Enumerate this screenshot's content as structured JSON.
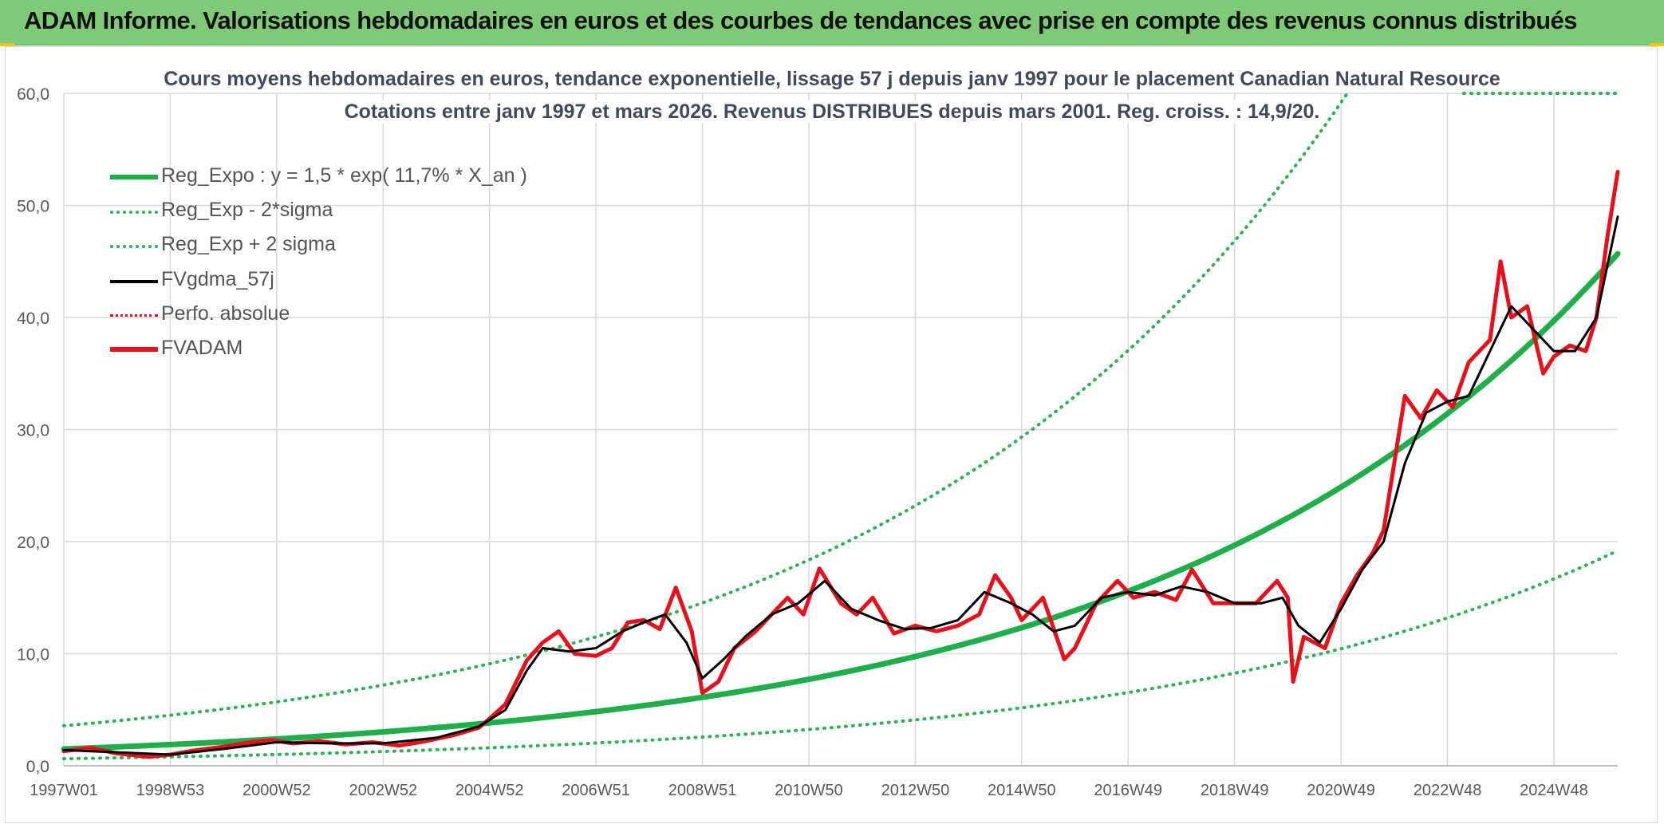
{
  "banner": {
    "title": "ADAM Informe. Valorisations hebdomadaires en euros et des courbes de tendances avec prise en compte des revenus connus distribués"
  },
  "colors": {
    "banner_bg": "#7fca76",
    "trend": "#1eae4a",
    "sigma": "#2ab351",
    "smooth": "#000000",
    "price": "#e8101a",
    "grid": "#d9d9d9",
    "tick_text": "#595959"
  },
  "chart_data": {
    "type": "line",
    "title": "Cours moyens hebdomadaires en euros, tendance exponentielle, lissage 57 j depuis janv 1997 pour le placement Canadian Natural Resource",
    "subtitle": "Cotations entre janv 1997 et mars 2026. Revenus DISTRIBUES depuis mars 2001. Reg. croiss. : 14,9/20.",
    "xlabel": "",
    "ylabel": "",
    "ylim": [
      0,
      60
    ],
    "y_ticks": [
      "0,0",
      "10,0",
      "20,0",
      "30,0",
      "40,0",
      "50,0",
      "60,0"
    ],
    "x_ticks": [
      "1997W01",
      "1998W53",
      "2000W52",
      "2002W52",
      "2004W52",
      "2006W51",
      "2008W51",
      "2010W50",
      "2012W50",
      "2014W50",
      "2016W49",
      "2018W49",
      "2020W49",
      "2022W48",
      "2024W48"
    ],
    "x_tick_years": [
      1997.0,
      1999.0,
      2001.0,
      2003.0,
      2005.0,
      2007.0,
      2009.0,
      2011.0,
      2013.0,
      2015.0,
      2017.0,
      2019.0,
      2021.0,
      2023.0,
      2025.0
    ],
    "xlim_years": [
      1997.0,
      2026.2
    ],
    "grid": true,
    "legend_position": "top-left",
    "regression": {
      "a": 1.5,
      "rate_pct": 11.7,
      "lower_factor": 0.42,
      "upper_factor": 2.38
    },
    "legend": [
      {
        "label": "Reg_Expo : y = 1,5 * exp( 11,7% *  X_an )",
        "style": "solid-thick",
        "color": "#1eae4a"
      },
      {
        "label": "Reg_Exp - 2*sigma",
        "style": "dotted",
        "color": "#2ab351"
      },
      {
        "label": "Reg_Exp + 2 sigma",
        "style": "dotted",
        "color": "#2ab351"
      },
      {
        "label": "FVgdma_57j",
        "style": "solid",
        "color": "#000000"
      },
      {
        "label": "Perfo. absolue",
        "style": "dotted",
        "color": "#e8101a"
      },
      {
        "label": "FVADAM",
        "style": "solid-thick",
        "color": "#e8101a"
      }
    ],
    "series": [
      {
        "name": "FVADAM",
        "x": [
          1997.0,
          1997.5,
          1998.0,
          1998.6,
          1999.0,
          1999.5,
          2000.0,
          2000.5,
          2000.9,
          2001.3,
          2001.8,
          2002.3,
          2002.8,
          2003.3,
          2003.8,
          2004.3,
          2004.8,
          2005.0,
          2005.3,
          2005.7,
          2006.0,
          2006.3,
          2006.6,
          2007.0,
          2007.3,
          2007.6,
          2007.9,
          2008.2,
          2008.5,
          2008.8,
          2009.0,
          2009.3,
          2009.6,
          2010.0,
          2010.3,
          2010.6,
          2010.9,
          2011.2,
          2011.6,
          2011.9,
          2012.2,
          2012.6,
          2013.0,
          2013.4,
          2013.8,
          2014.2,
          2014.5,
          2014.8,
          2015.0,
          2015.4,
          2015.8,
          2016.0,
          2016.4,
          2016.8,
          2017.1,
          2017.5,
          2017.9,
          2018.2,
          2018.6,
          2019.0,
          2019.4,
          2019.8,
          2020.0,
          2020.1,
          2020.3,
          2020.7,
          2021.0,
          2021.3,
          2021.6,
          2021.8,
          2022.0,
          2022.2,
          2022.5,
          2022.8,
          2023.1,
          2023.4,
          2023.8,
          2024.0,
          2024.2,
          2024.5,
          2024.8,
          2025.0,
          2025.3,
          2025.6,
          2025.8,
          2026.0,
          2026.2
        ],
        "values": [
          1.3,
          1.6,
          1.1,
          0.8,
          1.0,
          1.4,
          1.7,
          2.1,
          2.3,
          2.0,
          2.2,
          1.9,
          2.1,
          1.8,
          2.2,
          2.7,
          3.4,
          4.2,
          5.5,
          9.4,
          11.0,
          12.0,
          10.0,
          9.8,
          10.5,
          12.8,
          13.0,
          12.2,
          15.9,
          12.0,
          6.5,
          7.5,
          10.5,
          12.0,
          13.5,
          15.0,
          13.5,
          17.6,
          14.5,
          13.5,
          15.0,
          11.8,
          12.5,
          12.0,
          12.5,
          13.5,
          17.0,
          15.0,
          13.0,
          15.0,
          9.5,
          10.5,
          14.5,
          16.5,
          15.0,
          15.5,
          14.8,
          17.5,
          14.5,
          14.5,
          14.5,
          16.5,
          15.0,
          7.5,
          11.5,
          10.5,
          14.5,
          17.0,
          19.0,
          21.0,
          27.0,
          33.0,
          31.0,
          33.5,
          32.0,
          36.0,
          38.0,
          45.0,
          40.0,
          41.0,
          35.0,
          36.5,
          37.5,
          37.0,
          40.0,
          47.0,
          53.0
        ]
      },
      {
        "name": "FVgdma_57j",
        "x": [
          1997.0,
          1998.0,
          1999.0,
          2000.0,
          2001.0,
          2002.0,
          2003.0,
          2004.0,
          2004.8,
          2005.3,
          2005.7,
          2006.0,
          2006.5,
          2007.0,
          2007.5,
          2007.9,
          2008.3,
          2008.7,
          2009.0,
          2009.4,
          2009.8,
          2010.3,
          2010.8,
          2011.3,
          2011.8,
          2012.3,
          2012.8,
          2013.3,
          2013.8,
          2014.3,
          2014.8,
          2015.2,
          2015.6,
          2016.0,
          2016.5,
          2017.0,
          2017.5,
          2018.0,
          2018.5,
          2019.0,
          2019.5,
          2019.9,
          2020.2,
          2020.6,
          2021.0,
          2021.4,
          2021.8,
          2022.2,
          2022.6,
          2023.0,
          2023.4,
          2023.8,
          2024.2,
          2024.6,
          2025.0,
          2025.4,
          2025.8,
          2026.2
        ],
        "values": [
          1.4,
          1.2,
          1.0,
          1.5,
          2.1,
          2.0,
          2.0,
          2.5,
          3.5,
          5.0,
          8.5,
          10.5,
          10.2,
          10.5,
          12.0,
          12.8,
          13.5,
          11.0,
          7.8,
          9.5,
          11.5,
          13.5,
          14.5,
          16.5,
          14.0,
          13.0,
          12.2,
          12.3,
          13.0,
          15.5,
          14.5,
          13.5,
          12.0,
          12.5,
          15.0,
          15.5,
          15.2,
          16.0,
          15.5,
          14.5,
          14.5,
          15.0,
          12.5,
          11.0,
          14.0,
          17.5,
          20.0,
          27.0,
          31.5,
          32.5,
          33.0,
          37.0,
          41.0,
          39.0,
          37.0,
          37.0,
          40.0,
          49.0
        ]
      }
    ]
  }
}
